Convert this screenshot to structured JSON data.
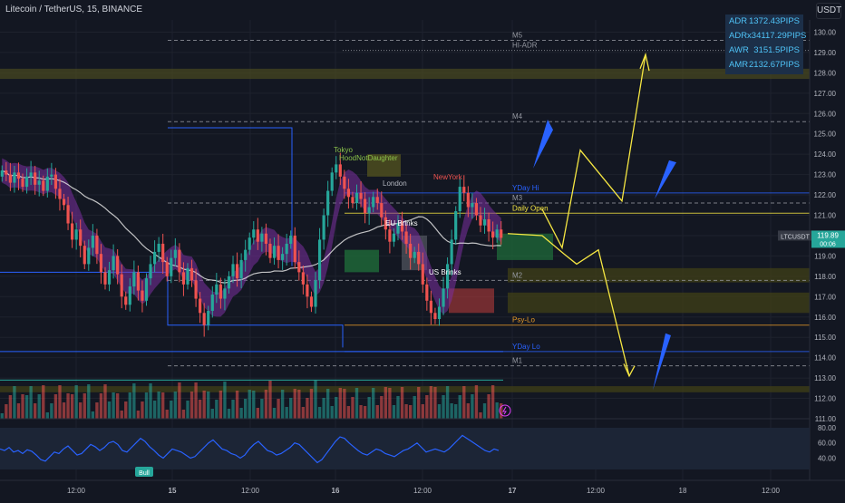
{
  "header": {
    "title": "Litecoin / TetherUS, 15, BINANCE",
    "currency_button": "USDT"
  },
  "stats": [
    {
      "label": "ADR",
      "value": "1372.43PIPS"
    },
    {
      "label": "ADRx3",
      "value": "4117.29PIPS"
    },
    {
      "label": "AWR",
      "value": "3151.5PIPS"
    },
    {
      "label": "AMR",
      "value": "2132.67PIPS"
    }
  ],
  "price_badge": {
    "symbol": "LTCUSDT",
    "price": "119.89",
    "countdown": "00:06",
    "color": "#26a69a"
  },
  "chart_data": {
    "type": "candlestick",
    "y_axis_labels": [
      "130.00",
      "129.00",
      "128.00",
      "127.00",
      "126.00",
      "125.00",
      "124.00",
      "123.00",
      "122.00",
      "121.00",
      "120.00",
      "119.00",
      "118.00",
      "117.00",
      "116.00",
      "115.00",
      "114.00",
      "113.00",
      "112.00",
      "111.00"
    ],
    "ylim": [
      111,
      130.6
    ],
    "x_axis_labels": [
      "12:00",
      "15",
      "12:00",
      "16",
      "12:00",
      "17",
      "12:00",
      "18",
      "12:00"
    ],
    "close_series": [
      123.2,
      123.0,
      122.6,
      123.1,
      122.8,
      122.4,
      122.9,
      123.1,
      122.5,
      122.7,
      122.2,
      122.9,
      123.0,
      122.3,
      121.8,
      121.5,
      120.6,
      119.8,
      120.3,
      119.5,
      118.6,
      119.4,
      120.0,
      119.1,
      118.2,
      117.6,
      118.3,
      119.0,
      118.1,
      117.0,
      116.6,
      117.5,
      118.2,
      117.3,
      116.8,
      117.9,
      118.6,
      119.2,
      119.6,
      118.7,
      118.0,
      118.9,
      119.3,
      118.2,
      117.6,
      118.4,
      117.8,
      116.9,
      116.2,
      115.6,
      116.3,
      117.1,
      117.6,
      116.9,
      117.4,
      118.0,
      118.6,
      117.9,
      118.8,
      119.3,
      119.9,
      120.3,
      119.7,
      120.1,
      119.6,
      118.9,
      119.5,
      118.8,
      119.1,
      119.6,
      120.0,
      118.7,
      118.2,
      117.6,
      117.0,
      116.5,
      117.8,
      119.8,
      121.0,
      122.2,
      123.1,
      123.5,
      122.9,
      122.3,
      121.9,
      121.6,
      122.1,
      121.8,
      121.1,
      121.4,
      121.9,
      121.6,
      120.9,
      120.3,
      119.7,
      120.1,
      120.6,
      120.2,
      119.6,
      118.9,
      119.2,
      118.6,
      117.6,
      116.8,
      116.2,
      115.9,
      116.5,
      117.4,
      118.6,
      119.8,
      121.2,
      122.4,
      122.1,
      121.4,
      121.6,
      121.0,
      120.5,
      120.8,
      120.2,
      119.9,
      120.3,
      119.89
    ],
    "levels": [
      {
        "label": "M5",
        "price": 129.6,
        "color": "#9598a1",
        "dash": "4,3"
      },
      {
        "label": "HI-ADR",
        "price": 129.1,
        "color": "#9598a1",
        "dash": "1,2"
      },
      {
        "label": "M4",
        "price": 125.6,
        "color": "#9598a1",
        "dash": "4,3"
      },
      {
        "label": "YDay Hi",
        "price": 122.1,
        "color": "#2962ff",
        "dash": ""
      },
      {
        "label": "M3",
        "price": 121.6,
        "color": "#9598a1",
        "dash": "4,3"
      },
      {
        "label": "Daily Open",
        "price": 121.1,
        "color": "#f5e642",
        "dash": ""
      },
      {
        "label": "M2",
        "price": 117.8,
        "color": "#9598a1",
        "dash": "4,3"
      },
      {
        "label": "Psy-Lo",
        "price": 115.6,
        "color": "#e69a28",
        "dash": ""
      },
      {
        "label": "YDay Lo",
        "price": 114.3,
        "color": "#2962ff",
        "dash": ""
      },
      {
        "label": "M1",
        "price": 113.6,
        "color": "#9598a1",
        "dash": "4,3"
      }
    ],
    "session_labels": [
      {
        "text": "Tokyo",
        "color": "#8bc34a"
      },
      {
        "text": "HoodNotDaughter",
        "color": "#8bc34a"
      },
      {
        "text": "London",
        "color": "#b2b5be"
      },
      {
        "text": "NewYork",
        "color": "#ef5350"
      },
      {
        "text": "EU Brinks",
        "color": "#ffffff"
      },
      {
        "text": "US Brinks",
        "color": "#ffffff"
      }
    ],
    "projection_path": [
      [
        598,
        121.3
      ],
      [
        620,
        119.4
      ],
      [
        640,
        124.2
      ],
      [
        686,
        121.7
      ],
      [
        712,
        128.9
      ]
    ],
    "projection_path_2": [
      [
        560,
        120.1
      ],
      [
        598,
        120.0
      ],
      [
        622,
        119.1
      ],
      [
        636,
        118.6
      ],
      [
        660,
        119.3
      ],
      [
        694,
        113.1
      ]
    ],
    "rsi": {
      "yticks": [
        "80.00",
        "60.00",
        "40.00"
      ],
      "values": [
        52,
        50,
        54,
        48,
        50,
        46,
        51,
        49,
        44,
        38,
        36,
        42,
        48,
        46,
        52,
        56,
        50,
        44,
        46,
        52,
        58,
        55,
        50,
        54,
        60,
        62,
        58,
        50,
        48,
        54,
        60,
        66,
        62,
        55,
        50,
        44,
        40,
        46,
        52,
        50,
        48,
        44,
        40,
        42,
        48,
        54,
        60,
        64,
        58,
        52,
        50,
        46,
        44,
        40,
        44,
        52,
        58,
        62,
        56,
        50,
        48,
        44,
        46,
        50,
        54,
        60,
        58,
        52,
        46,
        40,
        34,
        38,
        46,
        54,
        62,
        68,
        66,
        60,
        55,
        50,
        46,
        44,
        48,
        52,
        50,
        46,
        44,
        42,
        46,
        50,
        52,
        56,
        60,
        54,
        48,
        50,
        52,
        50,
        48,
        52,
        58,
        64,
        70,
        66,
        62,
        58,
        54,
        50,
        48,
        52,
        50
      ],
      "bull_label": "Bull"
    }
  }
}
